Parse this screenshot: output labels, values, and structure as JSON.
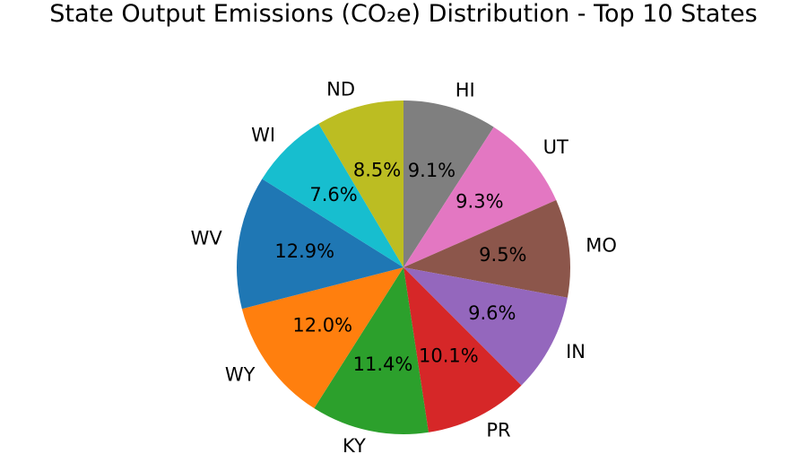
{
  "chart_data": {
    "type": "pie",
    "title": "State Output Emissions (CO₂e) Distribution - Top 10 States",
    "start_angle_deg": 90,
    "direction": "clockwise",
    "slices": [
      {
        "label": "HI",
        "percent": 9.1,
        "pct_label": "9.1%",
        "color": "#7f7f7f"
      },
      {
        "label": "UT",
        "percent": 9.3,
        "pct_label": "9.3%",
        "color": "#e377c2"
      },
      {
        "label": "MO",
        "percent": 9.5,
        "pct_label": "9.5%",
        "color": "#8c564b"
      },
      {
        "label": "IN",
        "percent": 9.6,
        "pct_label": "9.6%",
        "color": "#9467bd"
      },
      {
        "label": "PR",
        "percent": 10.1,
        "pct_label": "10.1%",
        "color": "#d62728"
      },
      {
        "label": "KY",
        "percent": 11.4,
        "pct_label": "11.4%",
        "color": "#2ca02c"
      },
      {
        "label": "WY",
        "percent": 12.0,
        "pct_label": "12.0%",
        "color": "#ff7f0e"
      },
      {
        "label": "WV",
        "percent": 12.9,
        "pct_label": "12.9%",
        "color": "#1f77b4"
      },
      {
        "label": "WI",
        "percent": 7.6,
        "pct_label": "7.6%",
        "color": "#17becf"
      },
      {
        "label": "ND",
        "percent": 8.5,
        "pct_label": "8.5%",
        "color": "#bcbd22"
      }
    ]
  }
}
